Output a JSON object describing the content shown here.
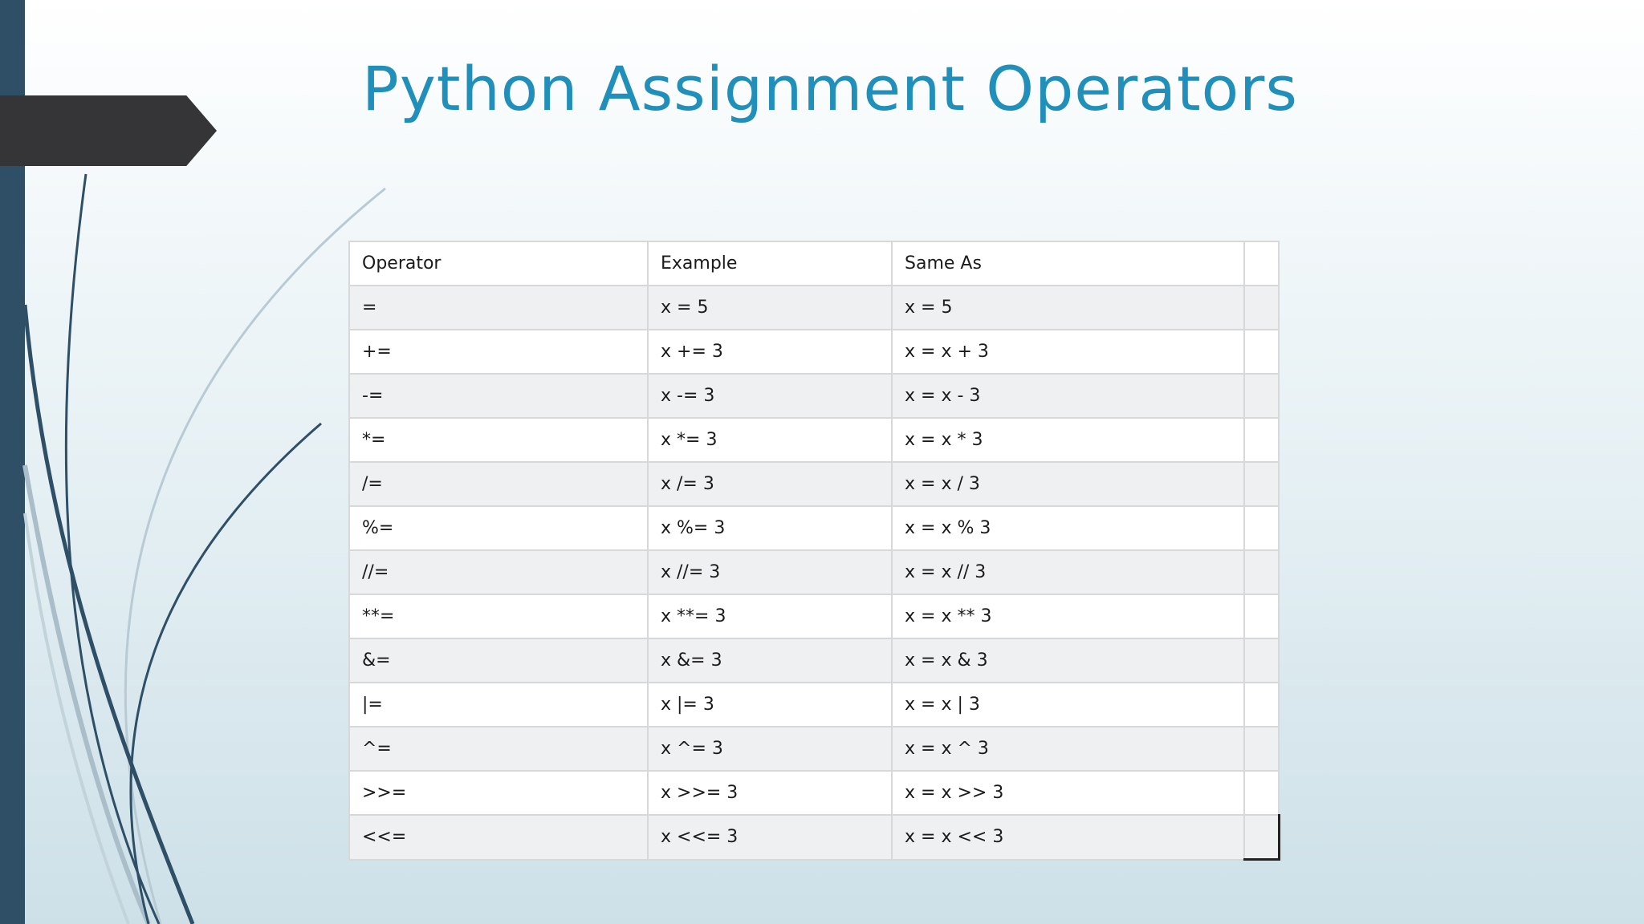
{
  "slide": {
    "title": "Python Assignment Operators"
  },
  "table": {
    "headers": [
      "Operator",
      "Example",
      "Same As"
    ],
    "rows": [
      [
        "=",
        "x = 5",
        "x = 5"
      ],
      [
        "+=",
        "x += 3",
        "x = x + 3"
      ],
      [
        "-=",
        "x -= 3",
        "x = x - 3"
      ],
      [
        "*=",
        "x *= 3",
        "x = x * 3"
      ],
      [
        "/=",
        "x /= 3",
        "x = x / 3"
      ],
      [
        "%=",
        "x %= 3",
        "x = x % 3"
      ],
      [
        "//=",
        "x //= 3",
        "x = x // 3"
      ],
      [
        "**=",
        "x **= 3",
        "x = x ** 3"
      ],
      [
        "&=",
        "x &= 3",
        "x = x & 3"
      ],
      [
        "|=",
        "x |= 3",
        "x = x | 3"
      ],
      [
        "^=",
        "x ^= 3",
        "x = x ^ 3"
      ],
      [
        ">>=",
        "x >>= 3",
        "x = x >> 3"
      ],
      [
        "<<=",
        "x <<= 3",
        "x = x << 3"
      ]
    ]
  },
  "colors": {
    "title": "#2090bb",
    "left_bar": "#2e4f66",
    "arrow_tab": "#353537"
  }
}
